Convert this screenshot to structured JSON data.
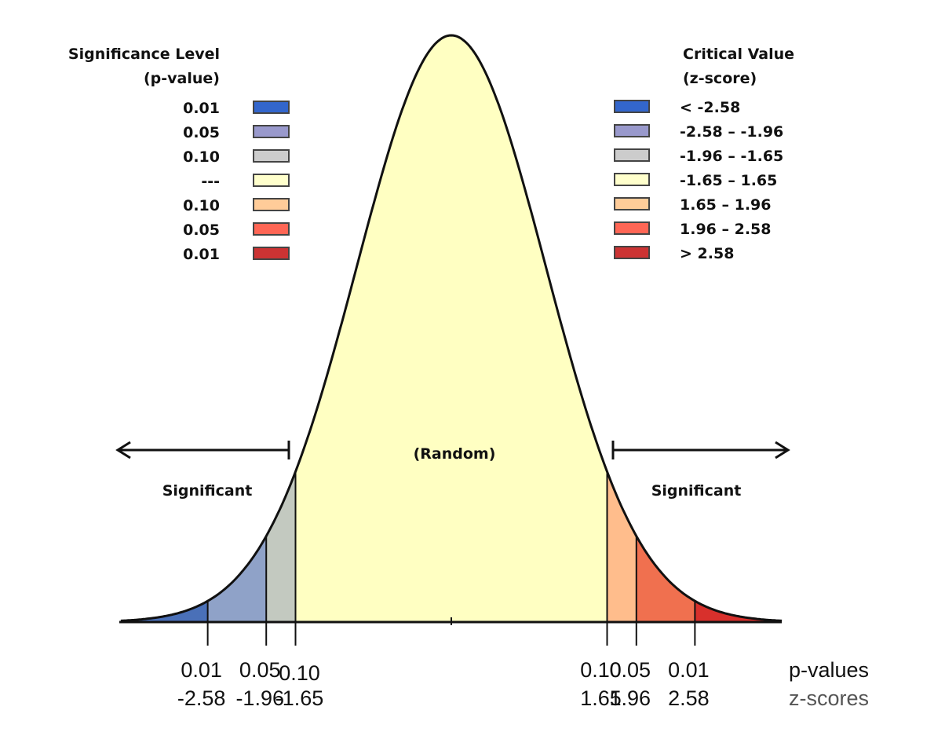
{
  "left_legend": {
    "title_line1": "Significance Level",
    "title_line2": "(p-value)",
    "items": [
      "0.01",
      "0.05",
      "0.10",
      "---",
      "0.10",
      "0.05",
      "0.01"
    ]
  },
  "right_legend": {
    "title_line1": "Critical Value",
    "title_line2": "(z-score)",
    "items": [
      "< -2.58",
      "-2.58 – -1.96",
      "-1.96 – -1.65",
      "-1.65 – 1.65",
      " 1.65 – 1.96",
      " 1.96 – 2.58",
      "> 2.58"
    ]
  },
  "legend_colors": [
    "#3366cc",
    "#9999cc",
    "#cccccc",
    "#ffffcc",
    "#ffcc99",
    "#ff6655",
    "#cc3333"
  ],
  "region_colors": [
    "#4a70b8",
    "#8fa2c8",
    "#c3c9c0",
    "#ffffc2",
    "#ffbd8c",
    "#f0704f",
    "#d8302c"
  ],
  "labels": {
    "random": "(Random)",
    "significant_left": "Significant",
    "significant_right": "Significant",
    "p_values_label": "p-values",
    "z_scores_label": "z-scores"
  },
  "critical_z": [
    -2.58,
    -1.96,
    -1.65,
    1.65,
    1.96,
    2.58
  ],
  "tick_labels": [
    {
      "p": "0.01",
      "z": "-2.58"
    },
    {
      "p": "0.05",
      "z": "-1.96"
    },
    {
      "p": "0.10",
      "z": "-1.65"
    },
    {
      "p": "0.10",
      "z": "1.65"
    },
    {
      "p": "0.05",
      "z": "1.96"
    },
    {
      "p": "0.01",
      "z": "2.58"
    }
  ],
  "z_range": [
    -3.5,
    3.5
  ]
}
